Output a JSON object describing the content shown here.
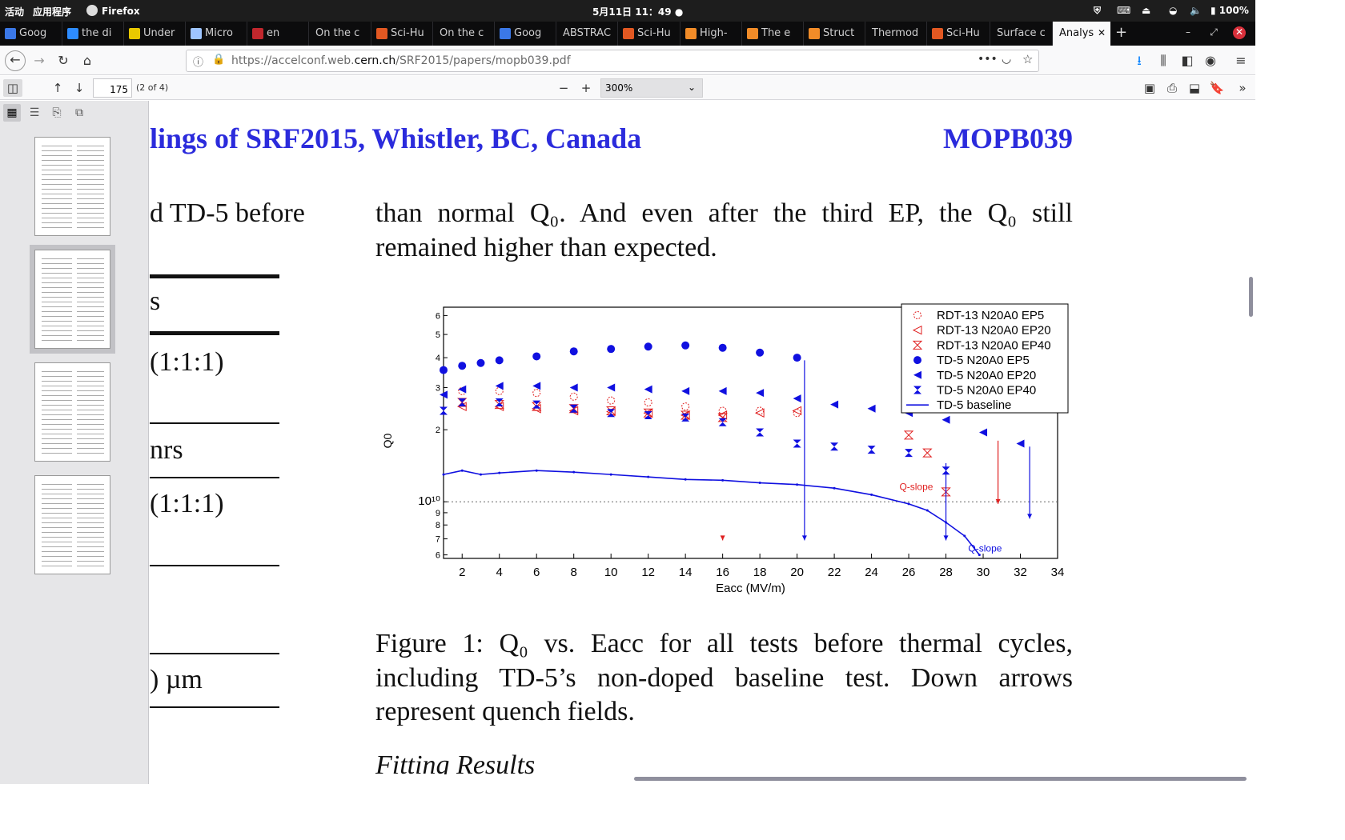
{
  "system_bar": {
    "activities": "活动",
    "apps": "应用程序",
    "app_name": "Firefox",
    "clock": "5月11日 11：49",
    "battery": "100%"
  },
  "tabs": [
    {
      "label": "Goog",
      "icon": "google-translate-icon",
      "color": "#3b78e7"
    },
    {
      "label": "the di",
      "icon": "bing-icon",
      "color": "#2d8cff"
    },
    {
      "label": "Under",
      "icon": "character-icon",
      "color": "#e8c800"
    },
    {
      "label": "Micro",
      "icon": "microsoft-icon",
      "color": "#9ec5ff"
    },
    {
      "label": "en",
      "icon": "tool-icon",
      "color": "#c1272d"
    },
    {
      "label": "On the c",
      "icon": "",
      "color": ""
    },
    {
      "label": "Sci-Hu",
      "icon": "scihub-icon",
      "color": "#e25822"
    },
    {
      "label": "On the c",
      "icon": "",
      "color": ""
    },
    {
      "label": "Goog",
      "icon": "google-translate-icon",
      "color": "#3b78e7"
    },
    {
      "label": "ABSTRAC",
      "icon": "",
      "color": ""
    },
    {
      "label": "Sci-Hu",
      "icon": "scihub-icon",
      "color": "#e25822"
    },
    {
      "label": "High-",
      "icon": "elsevier-icon",
      "color": "#f28c28"
    },
    {
      "label": "The e",
      "icon": "elsevier-icon",
      "color": "#f28c28"
    },
    {
      "label": "Struct",
      "icon": "elsevier-icon",
      "color": "#f28c28"
    },
    {
      "label": "Thermod",
      "icon": "",
      "color": ""
    },
    {
      "label": "Sci-Hu",
      "icon": "scihub-icon",
      "color": "#e25822"
    },
    {
      "label": "Surface c",
      "icon": "",
      "color": ""
    },
    {
      "label": "Analys",
      "icon": "",
      "color": "",
      "active": true
    }
  ],
  "url": {
    "prefix": "https://accelconf.web.",
    "host": "cern.ch",
    "path": "/SRF2015/papers/mopb039.pdf"
  },
  "pdf_toolbar": {
    "page_number": "175",
    "page_count": "(2 of 4)",
    "zoom": "300%"
  },
  "document": {
    "header_left": "lings of SRF2015, Whistler, BC, Canada",
    "header_right": "MOPB039",
    "left_col": [
      "d TD-5 before",
      "s",
      "(1:1:1)",
      "nrs",
      "(1:1:1)",
      ") µm"
    ],
    "paragraph": [
      "than normal Q₀.  And even after the third EP, the Q₀ still",
      "remained higher than expected."
    ],
    "caption": [
      "Figure 1: Q₀ vs. Eacc for all tests before thermal cycles,",
      "including TD-5’s non-doped baseline test. Down arrows",
      "represent quench fields."
    ],
    "next_heading": "Fitting Results"
  },
  "chart_data": {
    "type": "scatter",
    "xlabel": "Eacc (MV/m)",
    "ylabel": "Q0",
    "x_ticks": [
      "2",
      "4",
      "6",
      "8",
      "10",
      "12",
      "14",
      "16",
      "18",
      "20",
      "22",
      "24",
      "26",
      "28",
      "30",
      "32",
      "34"
    ],
    "y_ticks": [
      "6",
      "5",
      "4",
      "3",
      "2",
      "10¹⁰",
      "9",
      "8",
      "7",
      "6"
    ],
    "xlim": [
      1,
      34
    ],
    "y_scale": "log",
    "legend_placement": "top-right",
    "annotations": [
      "Q-slope",
      "Q-slope"
    ],
    "series": [
      {
        "name": "RDT-13 N20A0 EP5",
        "marker": "open-circle",
        "color": "#e02020",
        "x": [
          2,
          4,
          6,
          8,
          10,
          12,
          14,
          16,
          18,
          20
        ],
        "y": [
          2.9,
          2.9,
          2.85,
          2.75,
          2.65,
          2.6,
          2.5,
          2.4,
          2.4,
          2.35
        ]
      },
      {
        "name": "RDT-13 N20A0 EP20",
        "marker": "open-left-triangle",
        "color": "#e02020",
        "x": [
          2,
          4,
          6,
          8,
          10,
          12,
          14,
          16,
          18,
          20
        ],
        "y": [
          2.5,
          2.5,
          2.45,
          2.4,
          2.38,
          2.35,
          2.3,
          2.3,
          2.35,
          2.4
        ]
      },
      {
        "name": "RDT-13 N20A0 EP40",
        "marker": "hourglass",
        "color": "#e02020",
        "x": [
          2,
          4,
          6,
          8,
          10,
          12,
          14,
          16,
          26,
          27,
          28
        ],
        "y": [
          2.6,
          2.55,
          2.5,
          2.45,
          2.4,
          2.35,
          2.3,
          2.25,
          1.9,
          1.6,
          1.1
        ]
      },
      {
        "name": "TD-5 N20A0 EP5",
        "marker": "filled-circle",
        "color": "#1010e0",
        "x": [
          1,
          2,
          3,
          4,
          6,
          8,
          10,
          12,
          14,
          16,
          18,
          20
        ],
        "y": [
          3.55,
          3.7,
          3.8,
          3.9,
          4.05,
          4.25,
          4.35,
          4.45,
          4.5,
          4.4,
          4.2,
          4.0
        ]
      },
      {
        "name": "TD-5 N20A0 EP20",
        "marker": "filled-left-triangle",
        "color": "#1010e0",
        "x": [
          1,
          2,
          4,
          6,
          8,
          10,
          12,
          14,
          16,
          18,
          20,
          22,
          24,
          26,
          28,
          30,
          32
        ],
        "y": [
          2.8,
          2.95,
          3.05,
          3.05,
          3.0,
          3.0,
          2.95,
          2.9,
          2.9,
          2.85,
          2.7,
          2.55,
          2.45,
          2.35,
          2.2,
          1.95,
          1.75
        ]
      },
      {
        "name": "TD-5 N20A0 EP40",
        "marker": "filled-hourglass",
        "color": "#1010e0",
        "x": [
          1,
          2,
          4,
          6,
          8,
          10,
          12,
          14,
          16,
          18,
          20,
          22,
          24,
          26,
          28
        ],
        "y": [
          2.4,
          2.6,
          2.6,
          2.55,
          2.45,
          2.35,
          2.3,
          2.25,
          2.15,
          1.95,
          1.75,
          1.7,
          1.65,
          1.6,
          1.35
        ]
      },
      {
        "name": "TD-5 baseline",
        "marker": "line",
        "color": "#1010e0",
        "x": [
          1,
          2,
          3,
          4,
          6,
          8,
          10,
          12,
          14,
          16,
          18,
          20,
          22,
          24,
          26,
          27,
          28,
          29,
          29.8
        ],
        "y": [
          1.3,
          1.35,
          1.3,
          1.32,
          1.35,
          1.33,
          1.3,
          1.27,
          1.24,
          1.23,
          1.2,
          1.18,
          1.14,
          1.07,
          0.98,
          0.92,
          0.82,
          0.72,
          0.6
        ]
      }
    ],
    "quench_arrows_x": [
      16,
      20.4,
      28,
      30.8,
      32.5
    ]
  }
}
